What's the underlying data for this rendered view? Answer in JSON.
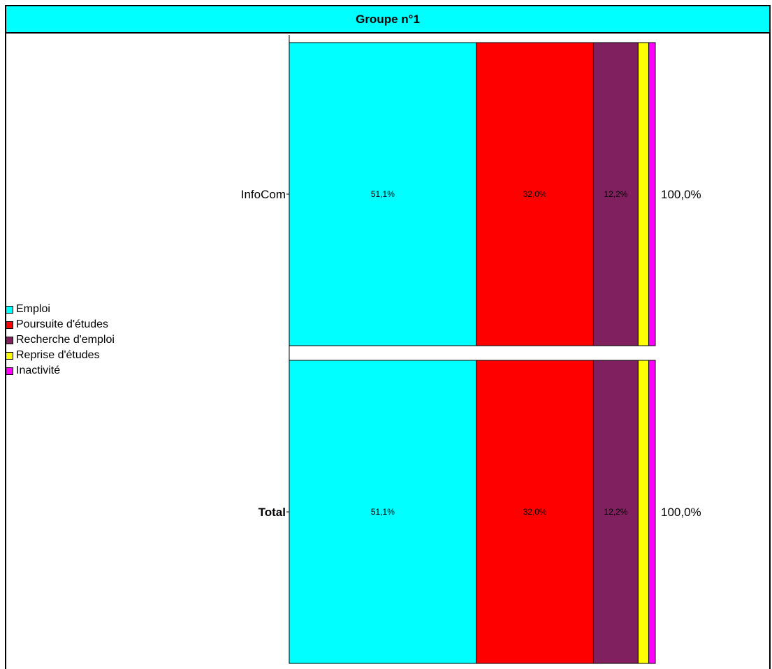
{
  "chart_data": {
    "type": "bar",
    "orientation": "horizontal",
    "stacked": true,
    "title": "Groupe n°1",
    "categories": [
      "InfoCom",
      "Total"
    ],
    "category_bold": [
      false,
      true
    ],
    "series": [
      {
        "name": "Emploi",
        "color": "#00ffff",
        "values": [
          51.1,
          51.1
        ],
        "labels": [
          "51,1%",
          "51,1%"
        ]
      },
      {
        "name": "Poursuite d'études",
        "color": "#ff0000",
        "values": [
          32.0,
          32.0
        ],
        "labels": [
          "32,0%",
          "32,0%"
        ]
      },
      {
        "name": "Recherche d'emploi",
        "color": "#80205f",
        "values": [
          12.2,
          12.2
        ],
        "labels": [
          "12,2%",
          "12,2%"
        ]
      },
      {
        "name": "Reprise d'études",
        "color": "#ffff00",
        "values": [
          2.9,
          2.9
        ],
        "labels": [
          "",
          ""
        ]
      },
      {
        "name": "Inactivité",
        "color": "#ff00ff",
        "values": [
          1.8,
          1.8
        ],
        "labels": [
          "",
          ""
        ]
      }
    ],
    "totals": [
      "100,0%",
      "100,0%"
    ],
    "xlim": [
      0,
      100
    ],
    "grid": false,
    "legend_position": "left"
  }
}
